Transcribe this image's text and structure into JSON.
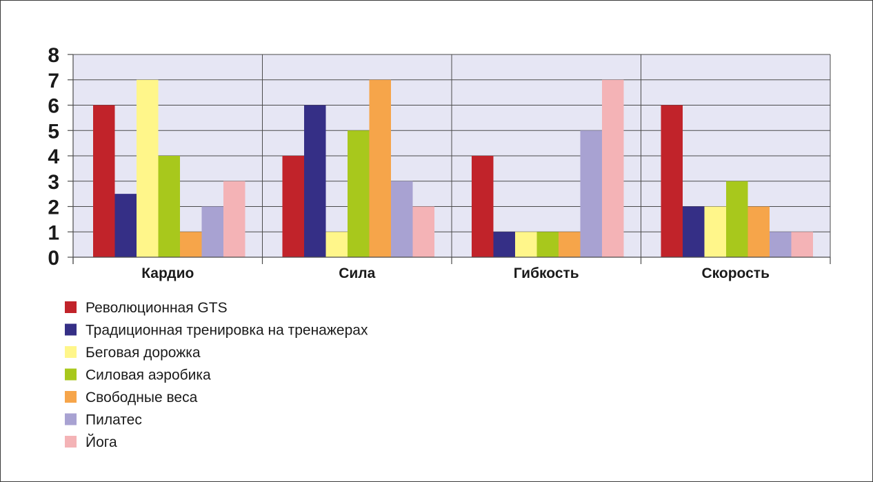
{
  "chart_data": {
    "type": "bar",
    "categories": [
      "Кардио",
      "Сила",
      "Гибкость",
      "Скорость"
    ],
    "series": [
      {
        "name": "Революционная GTS",
        "color": "#c1232a",
        "values": [
          6,
          4,
          4,
          6
        ]
      },
      {
        "name": "Традиционная тренировка на тренажерах",
        "color": "#352f86",
        "values": [
          2.5,
          6,
          1,
          2
        ]
      },
      {
        "name": "Беговая дорожка",
        "color": "#fff68a",
        "values": [
          7,
          1,
          1,
          2
        ]
      },
      {
        "name": "Силовая аэробика",
        "color": "#a8c81c",
        "values": [
          4,
          5,
          1,
          3
        ]
      },
      {
        "name": "Свободные веса",
        "color": "#f6a54a",
        "values": [
          1,
          7,
          1,
          2
        ]
      },
      {
        "name": "Пилатес",
        "color": "#a8a2d2",
        "values": [
          2,
          3,
          5,
          1
        ]
      },
      {
        "name": "Йога",
        "color": "#f4b3b6",
        "values": [
          3,
          2,
          7,
          1
        ]
      }
    ],
    "ylim": [
      0,
      8
    ],
    "yticks": [
      "0",
      "1",
      "2",
      "3",
      "4",
      "5",
      "6",
      "7",
      "8"
    ],
    "grid": true,
    "plot_background": "#e6e6f4",
    "legend_position": "bottom-left",
    "title": "",
    "xlabel": "",
    "ylabel": ""
  }
}
